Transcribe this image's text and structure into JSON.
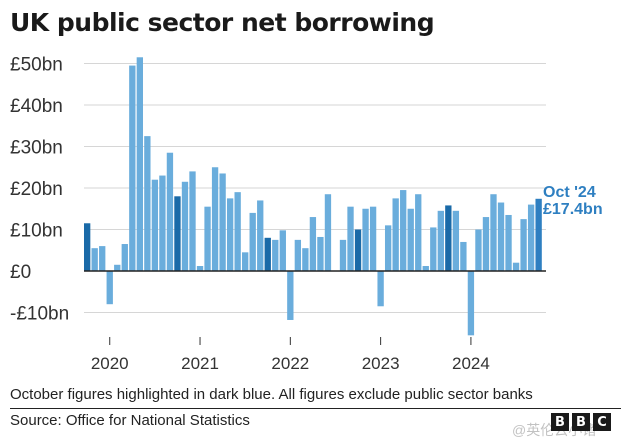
{
  "title": "UK public sector net borrowing",
  "note": "October figures highlighted in dark blue. All figures exclude public sector banks",
  "source": "Source: Office for National Statistics",
  "logo": [
    "B",
    "B",
    "C"
  ],
  "watermark": "@英伦云小诸",
  "colors": {
    "light": "#6aaddc",
    "dark": "#1a6aa8",
    "last": "#2e7fc1",
    "annotation": "#2e7fc1"
  },
  "chart_data": {
    "type": "bar",
    "unit": "£bn",
    "ylim": [
      -15,
      55
    ],
    "yticks": [
      {
        "value": 50,
        "label": "£50bn"
      },
      {
        "value": 40,
        "label": "£40bn"
      },
      {
        "value": 30,
        "label": "£30bn"
      },
      {
        "value": 20,
        "label": "£20bn"
      },
      {
        "value": 10,
        "label": "£10bn"
      },
      {
        "value": 0,
        "label": "£0"
      },
      {
        "value": -10,
        "label": "-£10bn"
      }
    ],
    "xticks": [
      {
        "index": 3,
        "label": "2020"
      },
      {
        "index": 15,
        "label": "2021"
      },
      {
        "index": 27,
        "label": "2022"
      },
      {
        "index": 39,
        "label": "2023"
      },
      {
        "index": 51,
        "label": "2024"
      }
    ],
    "grid": true,
    "highlighted_month": "October",
    "values": [
      11.5,
      5.5,
      6.0,
      -8.0,
      1.5,
      6.5,
      49.5,
      51.5,
      32.5,
      22.0,
      23.0,
      28.5,
      18.0,
      21.5,
      24.0,
      1.2,
      15.5,
      25.0,
      23.5,
      17.5,
      19.0,
      4.5,
      14.0,
      17.0,
      8.0,
      7.5,
      9.8,
      -11.8,
      7.5,
      5.5,
      13.0,
      8.2,
      18.5,
      0.0,
      7.5,
      15.5,
      10.0,
      15.0,
      15.5,
      -8.5,
      11.0,
      17.5,
      19.5,
      15.0,
      18.5,
      1.2,
      10.5,
      14.5,
      15.8,
      14.5,
      7.0,
      -15.5,
      10.0,
      13.0,
      18.5,
      16.5,
      13.5,
      2.0,
      12.5,
      16.0,
      17.4
    ],
    "annotation": {
      "index": 60,
      "line1": "Oct '24",
      "line2": "£17.4bn"
    }
  }
}
